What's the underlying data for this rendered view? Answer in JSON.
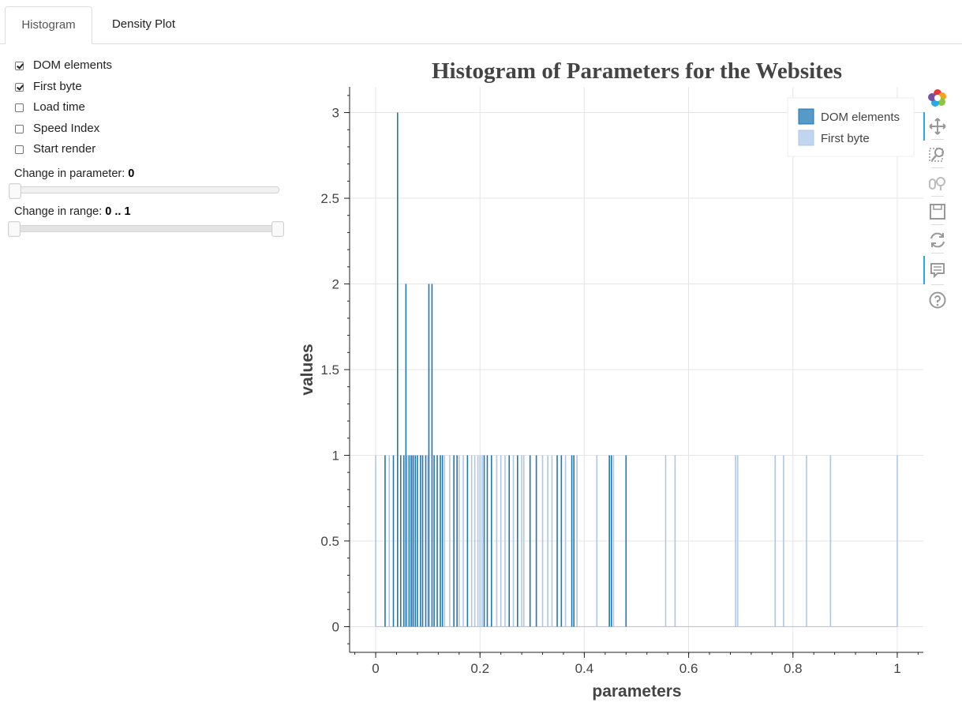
{
  "tabs": [
    {
      "label": "Histogram",
      "active": true
    },
    {
      "label": "Density Plot",
      "active": false
    }
  ],
  "checkboxes": [
    {
      "label": "DOM elements",
      "checked": true
    },
    {
      "label": "First byte",
      "checked": true
    },
    {
      "label": "Load time",
      "checked": false
    },
    {
      "label": "Speed Index",
      "checked": false
    },
    {
      "label": "Start render",
      "checked": false
    }
  ],
  "sliders": {
    "parameter": {
      "title": "Change in parameter:",
      "value": "0"
    },
    "range": {
      "title": "Change in range:",
      "value": "0 .. 1"
    }
  },
  "toolbar": {
    "tools": [
      "bokeh-logo-icon",
      "pan-icon",
      "box-zoom-icon",
      "wheel-zoom-icon",
      "save-icon",
      "reset-icon",
      "hover-icon",
      "help-icon"
    ]
  },
  "chart_data": {
    "type": "bar",
    "title": "Histogram of Parameters for the Websites",
    "xlabel": "parameters",
    "ylabel": "values",
    "xlim": [
      -0.05,
      1.05
    ],
    "ylim": [
      -0.15,
      3.15
    ],
    "x_ticks": [
      "0",
      "0.2",
      "0.4",
      "0.6",
      "0.8",
      "1"
    ],
    "y_ticks": [
      "0",
      "0.5",
      "1",
      "1.5",
      "2",
      "2.5",
      "3"
    ],
    "grid": true,
    "legend": {
      "position": "top-right",
      "entries": [
        "DOM elements",
        "First byte"
      ]
    },
    "series": [
      {
        "name": "DOM elements",
        "color": "#1f77b4",
        "x": [
          0.018,
          0.034,
          0.042,
          0.048,
          0.054,
          0.058,
          0.064,
          0.068,
          0.072,
          0.076,
          0.08,
          0.086,
          0.09,
          0.096,
          0.102,
          0.108,
          0.112,
          0.118,
          0.124,
          0.128,
          0.15,
          0.156,
          0.176,
          0.208,
          0.214,
          0.222,
          0.256,
          0.272,
          0.296,
          0.308,
          0.348,
          0.356,
          0.376,
          0.38,
          0.448,
          0.452,
          0.48
        ],
        "values": [
          1,
          1,
          3,
          1,
          1,
          2,
          1,
          1,
          1,
          1,
          1,
          1,
          1,
          1,
          2,
          2,
          1,
          1,
          1,
          1,
          1,
          1,
          1,
          1,
          1,
          1,
          1,
          1,
          1,
          1,
          1,
          1,
          1,
          1,
          1,
          1,
          1
        ]
      },
      {
        "name": "First byte",
        "color": "#aec7e8",
        "x": [
          0.0,
          0.026,
          0.06,
          0.07,
          0.1,
          0.132,
          0.142,
          0.16,
          0.168,
          0.184,
          0.19,
          0.196,
          0.2,
          0.204,
          0.232,
          0.24,
          0.248,
          0.264,
          0.28,
          0.284,
          0.32,
          0.33,
          0.338,
          0.364,
          0.386,
          0.424,
          0.456,
          0.556,
          0.574,
          0.69,
          0.694,
          0.766,
          0.782,
          0.826,
          0.872,
          1.0
        ],
        "values": [
          1,
          1,
          1,
          1,
          1,
          1,
          1,
          1,
          1,
          1,
          1,
          1,
          1,
          1,
          1,
          1,
          1,
          1,
          1,
          1,
          1,
          1,
          1,
          1,
          1,
          1,
          1,
          1,
          1,
          1,
          1,
          1,
          1,
          1,
          1,
          1
        ]
      }
    ]
  }
}
